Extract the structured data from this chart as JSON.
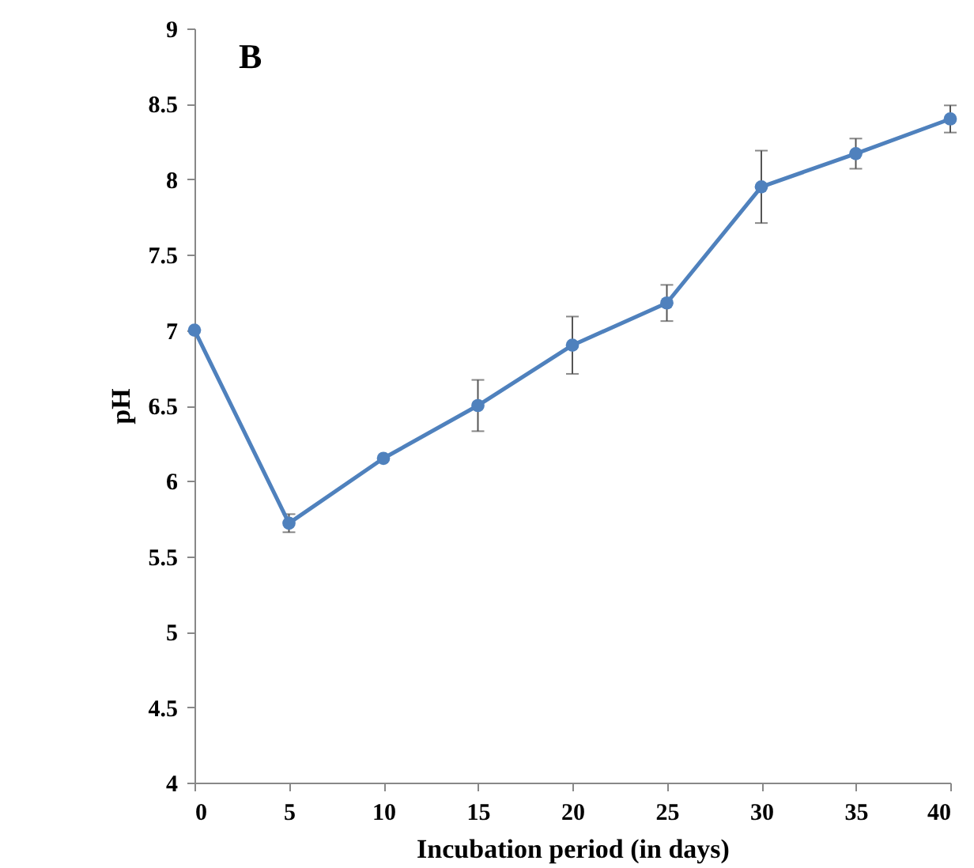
{
  "chart_data": {
    "type": "line",
    "xlabel": "Incubation period (in days)",
    "ylabel": "pH",
    "annotations": [
      "B"
    ],
    "x": [
      0,
      5,
      10,
      15,
      20,
      25,
      30,
      35,
      40
    ],
    "series": [
      {
        "color": "#4f81bd",
        "values": [
          7.0,
          5.72,
          6.15,
          6.5,
          6.9,
          7.18,
          7.95,
          8.17,
          8.4
        ],
        "errors": [
          null,
          0.06,
          null,
          0.17,
          0.19,
          0.12,
          0.24,
          0.1,
          0.09
        ]
      }
    ],
    "xlim": [
      0,
      40
    ],
    "xticks": [
      0,
      5,
      10,
      15,
      20,
      25,
      30,
      35,
      40
    ],
    "ylim": [
      4,
      9
    ],
    "yticks": [
      4,
      4.5,
      5,
      5.5,
      6,
      6.5,
      7,
      7.5,
      8,
      8.5,
      9
    ],
    "grid": false,
    "marker": "circle",
    "line_style": "solid"
  }
}
